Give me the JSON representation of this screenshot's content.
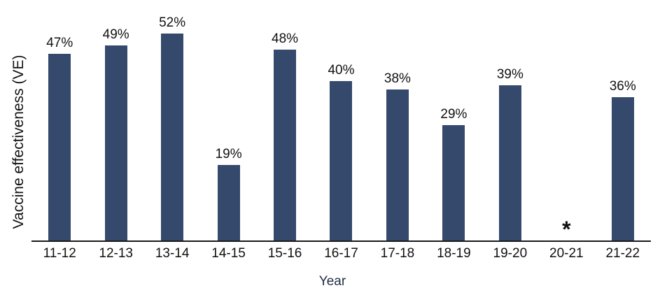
{
  "chart_data": {
    "type": "bar",
    "title": "",
    "xlabel": "Year",
    "ylabel": "Vaccine effectiveness (VE)",
    "categories": [
      "11-12",
      "12-13",
      "13-14",
      "14-15",
      "15-16",
      "16-17",
      "17-18",
      "18-19",
      "19-20",
      "20-21",
      "21-22"
    ],
    "values": [
      47,
      49,
      52,
      19,
      48,
      40,
      38,
      29,
      39,
      null,
      36
    ],
    "bar_labels": [
      "47%",
      "49%",
      "52%",
      "19%",
      "48%",
      "40%",
      "38%",
      "29%",
      "39%",
      "*",
      "36%"
    ],
    "missing_marker": "*",
    "bar_color": "#34496B",
    "axis_color": "#1a1a1a",
    "label_color": "#111111",
    "xlabel_color": "#233047",
    "ylim": [
      0,
      60
    ],
    "grid": false,
    "legend": false
  }
}
